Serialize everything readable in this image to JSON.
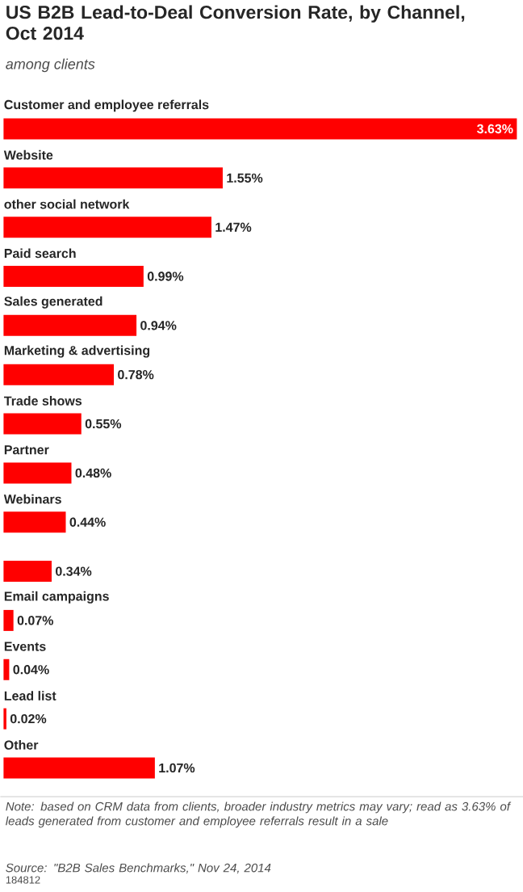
{
  "chart_data": {
    "type": "bar",
    "orientation": "horizontal",
    "title": "US B2B Lead-to-Deal Conversion Rate, by Channel, Oct 2014",
    "subtitle": "among clients",
    "categories": [
      "Customer and employee referrals",
      "Website",
      "other social network",
      "Paid search",
      "Sales generated",
      "Marketing & advertising",
      "Trade shows",
      "Partner",
      "Webinars",
      null,
      "Email campaigns",
      "Events",
      "Lead list",
      "Other"
    ],
    "values": [
      3.63,
      1.55,
      1.47,
      0.99,
      0.94,
      0.78,
      0.55,
      0.48,
      0.44,
      0.34,
      0.07,
      0.04,
      0.02,
      1.07
    ],
    "value_labels": [
      "3.63%",
      "1.55%",
      "1.47%",
      "0.99%",
      "0.94%",
      "0.78%",
      "0.55%",
      "0.48%",
      "0.44%",
      "0.34%",
      "0.07%",
      "0.04%",
      "0.02%",
      "1.07%"
    ],
    "color": "#ff0000",
    "annotations": [
      "Note: based on CRM data from clients, broader industry metrics may vary; read as 3.63% of leads generated from customer and employee referrals result in a sale",
      "Source: \"B2B Sales Benchmarks,\" Nov 24, 2014",
      "184812"
    ]
  }
}
